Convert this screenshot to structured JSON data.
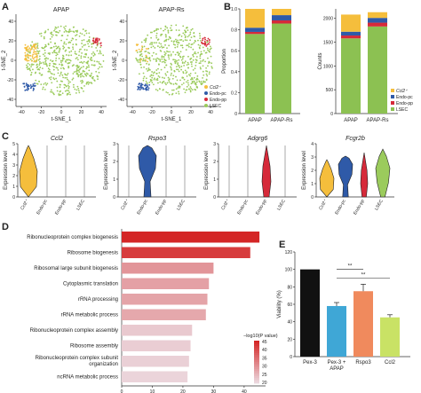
{
  "panels": {
    "A": {
      "letter": "A",
      "plots": [
        {
          "title": "APAP",
          "xlabel": "t-SNE_1",
          "ylabel": "t-SNE_2",
          "xticks": [
            "-40",
            "-20",
            "0",
            "20",
            "40"
          ],
          "yticks": [
            "40",
            "20",
            "0",
            "-20",
            "-40"
          ]
        },
        {
          "title": "APAP-Rs",
          "xlabel": "t-SNE_1",
          "ylabel": "t-SNE_2",
          "xticks": [
            "-40",
            "-20",
            "0",
            "20",
            "40"
          ],
          "yticks": [
            "40",
            "20",
            "0",
            "-20",
            "-40"
          ]
        }
      ],
      "legend": [
        {
          "label": "Ccl2⁺",
          "color": "#f5be3c"
        },
        {
          "label": "Endo-pc",
          "color": "#2f5aa8"
        },
        {
          "label": "Endo-pp",
          "color": "#d62a3a"
        },
        {
          "label": "LSEC",
          "color": "#9bcb5c"
        }
      ]
    },
    "B": {
      "letter": "B",
      "legend": [
        {
          "label": "Ccl2⁺",
          "color": "#f5be3c"
        },
        {
          "label": "Endo-pc",
          "color": "#2f5aa8"
        },
        {
          "label": "Endo-pp",
          "color": "#d62a3a"
        },
        {
          "label": "LSEC",
          "color": "#8cc152"
        }
      ]
    },
    "C": {
      "letter": "C",
      "ylabel": "Expression level",
      "categories": [
        "Ccl2⁺",
        "Endo-pc",
        "Endo-pp",
        "LSEC"
      ],
      "genes": [
        {
          "name": "Ccl2",
          "yticks": [
            "0",
            "1",
            "2",
            "3",
            "4",
            "5"
          ]
        },
        {
          "name": "Rspo3",
          "yticks": [
            "0",
            "1",
            "2",
            "3"
          ]
        },
        {
          "name": "Adgrg6",
          "yticks": [
            "0",
            "1",
            "2",
            "3"
          ]
        },
        {
          "name": "Fcgr2b",
          "yticks": [
            "0",
            "1",
            "2",
            "3",
            "4"
          ]
        }
      ],
      "colors": [
        "#f5be3c",
        "#2f5aa8",
        "#d62a3a",
        "#9bcb5c"
      ]
    },
    "D": {
      "letter": "D",
      "colorbar_title": "−log10(P value)",
      "colorbar_ticks": [
        "45",
        "40",
        "35",
        "30",
        "25",
        "20"
      ]
    },
    "E": {
      "letter": "E",
      "significance": [
        "**",
        "**"
      ]
    }
  },
  "chart_data": [
    {
      "type": "bar",
      "stacked": true,
      "categories": [
        "APAP",
        "APAP-Rs"
      ],
      "ylabel": "Proportion",
      "ylim": [
        0,
        1
      ],
      "yticks": [
        "0",
        "0.2",
        "0.4",
        "0.6",
        "0.8",
        "1.0"
      ],
      "series": [
        {
          "name": "LSEC",
          "values": [
            0.76,
            0.86
          ]
        },
        {
          "name": "Endo-pp",
          "values": [
            0.02,
            0.03
          ]
        },
        {
          "name": "Endo-pc",
          "values": [
            0.04,
            0.05
          ]
        },
        {
          "name": "Ccl2⁺",
          "values": [
            0.18,
            0.06
          ]
        }
      ]
    },
    {
      "type": "bar",
      "stacked": true,
      "categories": [
        "APAP",
        "APAP-Rs"
      ],
      "ylabel": "Counts",
      "ylim": [
        0,
        2200
      ],
      "yticks": [
        "0",
        "500",
        "1000",
        "1500",
        "2000"
      ],
      "series": [
        {
          "name": "LSEC",
          "values": [
            1580,
            1830
          ]
        },
        {
          "name": "Endo-pp",
          "values": [
            60,
            80
          ]
        },
        {
          "name": "Endo-pc",
          "values": [
            80,
            100
          ]
        },
        {
          "name": "Ccl2⁺",
          "values": [
            360,
            120
          ]
        }
      ]
    },
    {
      "type": "bar",
      "orientation": "horizontal",
      "xlabel": "−log10(P value)",
      "xticks": [
        "0",
        "10",
        "20",
        "30",
        "40"
      ],
      "xlim": [
        0,
        47
      ],
      "categories": [
        "Ribonucleoprotein complex biogenesis",
        "Ribosome biogenesis",
        "Ribosomal large subunit biogenesis",
        "Cytoplasmic translation",
        "rRNA processing",
        "rRNA metabolic process",
        "Ribonucleoprotein complex assembly",
        "Ribosome assembly",
        "Ribonucleoprotein complex subunit organization",
        "ncRNA metabolic process"
      ],
      "values": [
        45,
        42,
        30,
        28.5,
        28,
        27.5,
        23,
        22.5,
        22,
        21.5
      ]
    },
    {
      "type": "bar",
      "ylabel": "Viability (%)",
      "ylim": [
        0,
        120
      ],
      "yticks": [
        "0",
        "20",
        "40",
        "60",
        "80",
        "100",
        "120"
      ],
      "categories": [
        "Pex-3",
        "Pex-3 + APAP",
        "Rspo3",
        "Ccl2"
      ],
      "values": [
        100,
        58,
        75,
        45
      ],
      "errors": [
        0,
        4,
        8,
        3
      ],
      "colors": [
        "#111111",
        "#3fa7d6",
        "#f08a5d",
        "#c9e265"
      ]
    }
  ]
}
